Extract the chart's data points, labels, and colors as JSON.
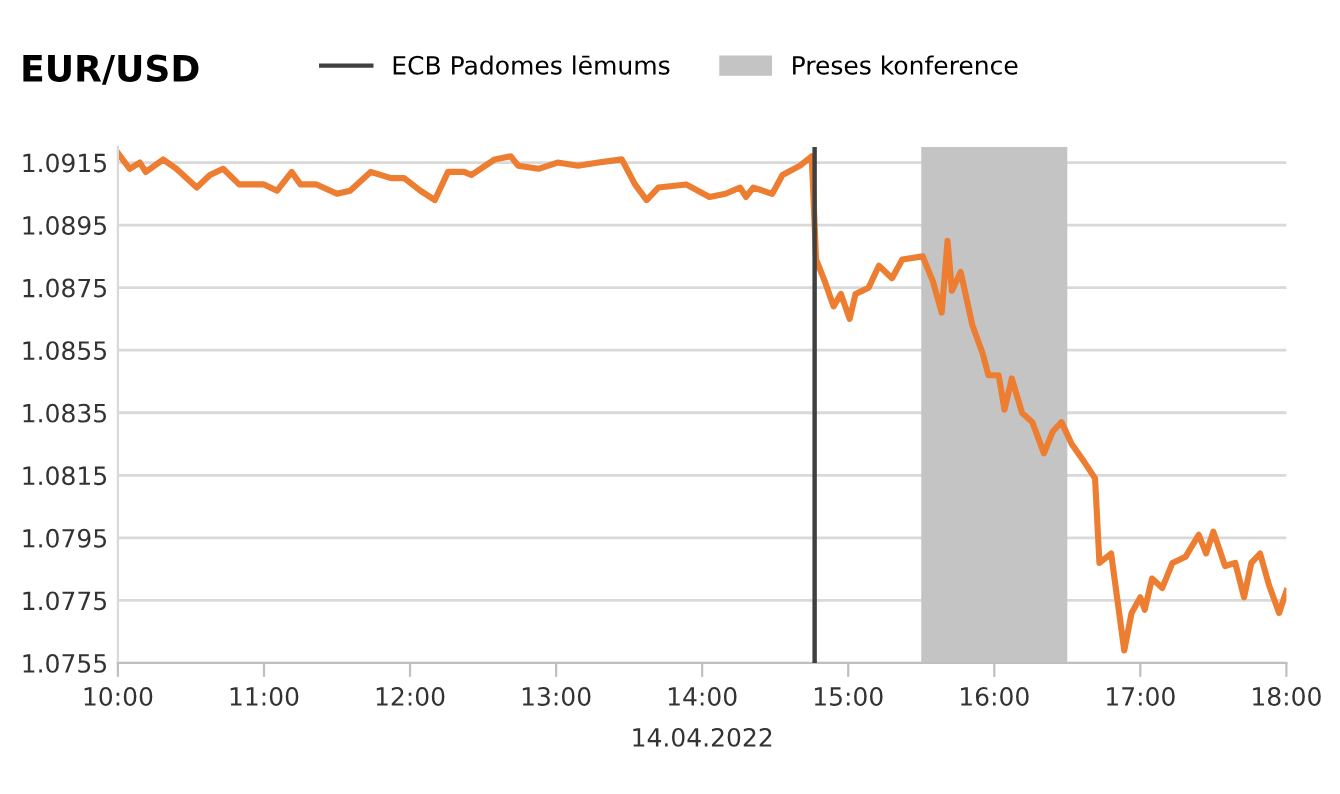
{
  "chart_data": {
    "type": "line",
    "title": "EUR/USD",
    "xlabel": "14.04.2022",
    "x": [
      10.0,
      10.08,
      10.15,
      10.19,
      10.31,
      10.4,
      10.54,
      10.63,
      10.72,
      10.83,
      11.0,
      11.09,
      11.19,
      11.25,
      11.36,
      11.5,
      11.59,
      11.73,
      11.87,
      11.96,
      12.07,
      12.17,
      12.26,
      12.37,
      12.42,
      12.58,
      12.69,
      12.74,
      12.88,
      13.01,
      13.15,
      13.29,
      13.45,
      13.54,
      13.62,
      13.7,
      13.89,
      14.05,
      14.16,
      14.26,
      14.3,
      14.35,
      14.48,
      14.55,
      14.67,
      14.75,
      14.78,
      14.84,
      14.9,
      14.95,
      15.01,
      15.05,
      15.14,
      15.21,
      15.3,
      15.37,
      15.51,
      15.58,
      15.64,
      15.68,
      15.71,
      15.77,
      15.85,
      15.92,
      15.96,
      16.03,
      16.07,
      16.12,
      16.19,
      16.26,
      16.34,
      16.4,
      16.46,
      16.53,
      16.62,
      16.69,
      16.72,
      16.8,
      16.89,
      16.94,
      17.0,
      17.03,
      17.08,
      17.15,
      17.22,
      17.31,
      17.4,
      17.45,
      17.5,
      17.58,
      17.65,
      17.71,
      17.76,
      17.82,
      17.88,
      17.95,
      18.0
    ],
    "series": [
      {
        "color": "#ed7d31",
        "values": [
          1.0918,
          1.0913,
          1.0915,
          1.0912,
          1.0916,
          1.0913,
          1.0907,
          1.0911,
          1.0913,
          1.0908,
          1.0908,
          1.0906,
          1.0912,
          1.0908,
          1.0908,
          1.0905,
          1.0906,
          1.0912,
          1.091,
          1.091,
          1.0906,
          1.0903,
          1.0912,
          1.0912,
          1.0911,
          1.0916,
          1.0917,
          1.0914,
          1.0913,
          1.0915,
          1.0914,
          1.0915,
          1.0916,
          1.0908,
          1.0903,
          1.0907,
          1.0908,
          1.0904,
          1.0905,
          1.0907,
          1.0904,
          1.0907,
          1.0905,
          1.0911,
          1.0914,
          1.0917,
          1.0884,
          1.0877,
          1.0869,
          1.0873,
          1.0865,
          1.0873,
          1.0875,
          1.0882,
          1.0878,
          1.0884,
          1.0885,
          1.0877,
          1.0867,
          1.089,
          1.0874,
          1.088,
          1.0863,
          1.0854,
          1.0847,
          1.0847,
          1.0836,
          1.0846,
          1.0835,
          1.0832,
          1.0822,
          1.0829,
          1.0832,
          1.0825,
          1.0819,
          1.0814,
          1.0787,
          1.079,
          1.0759,
          1.0771,
          1.0776,
          1.0772,
          1.0782,
          1.0779,
          1.0787,
          1.0789,
          1.0796,
          1.079,
          1.0797,
          1.0786,
          1.0787,
          1.0776,
          1.0787,
          1.079,
          1.078,
          1.0771,
          1.0778
        ]
      }
    ],
    "xlim": [
      10,
      18
    ],
    "xticks": [
      {
        "value": 10,
        "label": "10:00"
      },
      {
        "value": 11,
        "label": "11:00"
      },
      {
        "value": 12,
        "label": "12:00"
      },
      {
        "value": 13,
        "label": "13:00"
      },
      {
        "value": 14,
        "label": "14:00"
      },
      {
        "value": 15,
        "label": "15:00"
      },
      {
        "value": 16,
        "label": "16:00"
      },
      {
        "value": 17,
        "label": "17:00"
      },
      {
        "value": 18,
        "label": "18:00"
      }
    ],
    "ylim": [
      1.0755,
      1.092
    ],
    "yticks": [
      1.0755,
      1.0775,
      1.0795,
      1.0815,
      1.0835,
      1.0855,
      1.0875,
      1.0895,
      1.0915
    ],
    "ref_lines": [
      {
        "axis": "x",
        "value": 14.77,
        "label": "ECB Padomes lēmums",
        "color": "#404040"
      }
    ],
    "bands": [
      {
        "axis": "x",
        "from": 15.5,
        "to": 16.5,
        "label": "Preses konference",
        "color": "#c4c4c4"
      }
    ],
    "grid": "y",
    "legend": "top",
    "marker": "none",
    "line_style": "solid"
  }
}
